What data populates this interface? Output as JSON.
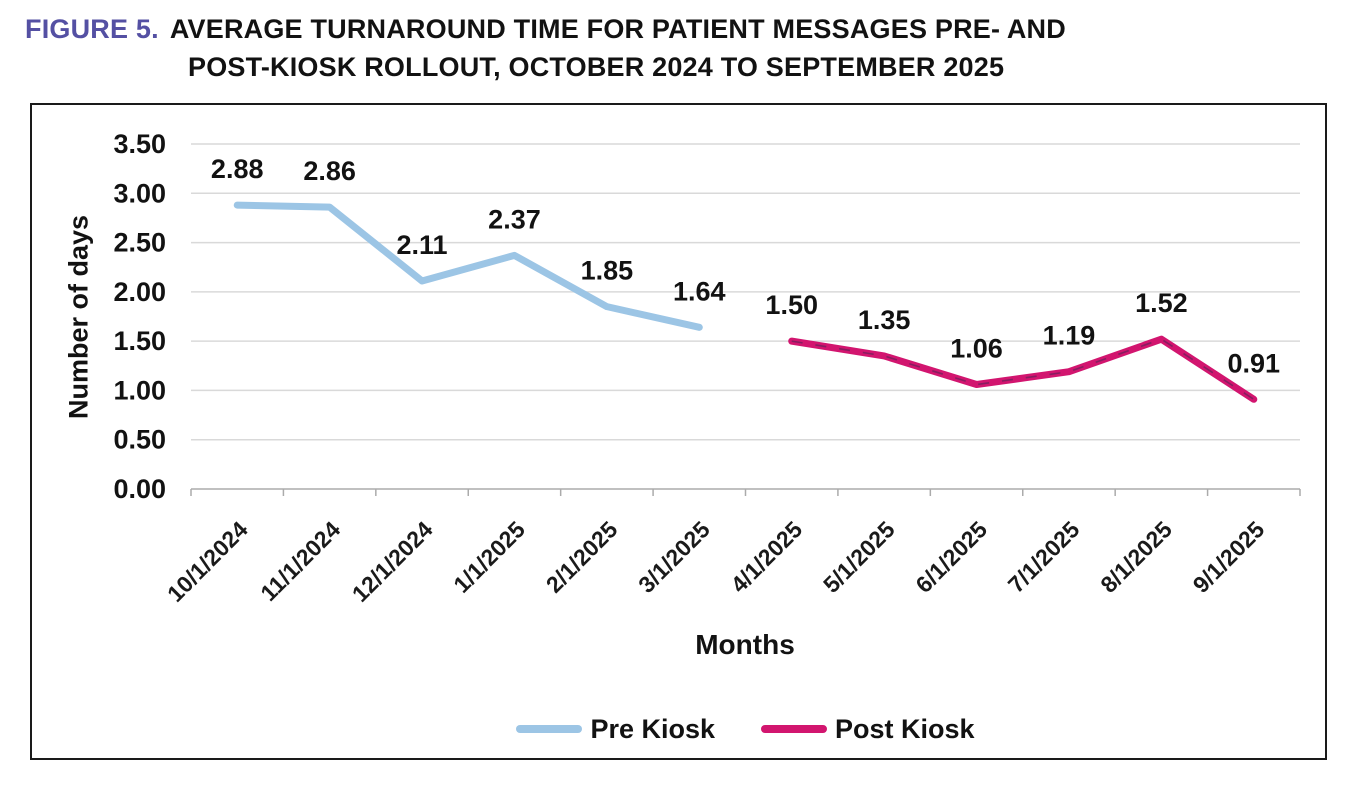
{
  "figure_label": "FIGURE 5.",
  "title_line1": "AVERAGE TURNAROUND TIME FOR PATIENT MESSAGES PRE- AND",
  "title_line2": "POST-KIOSK ROLLOUT, OCTOBER 2024 TO SEPTEMBER 2025",
  "colors": {
    "figure_label": "#5450A3",
    "title_text": "#121212",
    "frame_border": "#1a1a1a",
    "background": "#ffffff"
  },
  "chart_data": {
    "type": "line",
    "title": "Average turnaround time for patient messages pre- and post-kiosk rollout",
    "categories": [
      "10/1/2024",
      "11/1/2024",
      "12/1/2024",
      "1/1/2025",
      "2/1/2025",
      "3/1/2025",
      "4/1/2025",
      "5/1/2025",
      "6/1/2025",
      "7/1/2025",
      "8/1/2025",
      "9/1/2025"
    ],
    "series": [
      {
        "name": "Pre Kiosk",
        "color": "#9CC5E5",
        "dashed_overlay": false,
        "values": [
          2.88,
          2.86,
          2.11,
          2.37,
          1.85,
          1.64,
          null,
          null,
          null,
          null,
          null,
          null
        ]
      },
      {
        "name": "Post Kiosk",
        "color": "#D2156F",
        "dashed_overlay": true,
        "values": [
          null,
          null,
          null,
          null,
          null,
          null,
          1.5,
          1.35,
          1.06,
          1.19,
          1.52,
          0.91
        ]
      }
    ],
    "xlabel": "Months",
    "ylabel": "Number of days",
    "ylim": [
      0,
      3.5
    ],
    "ytick_step": 0.5,
    "grid": true,
    "grid_color": "#D9D9D9",
    "axis_color": "#ABABAB",
    "label_color": "#121212",
    "legend_position": "bottom"
  }
}
